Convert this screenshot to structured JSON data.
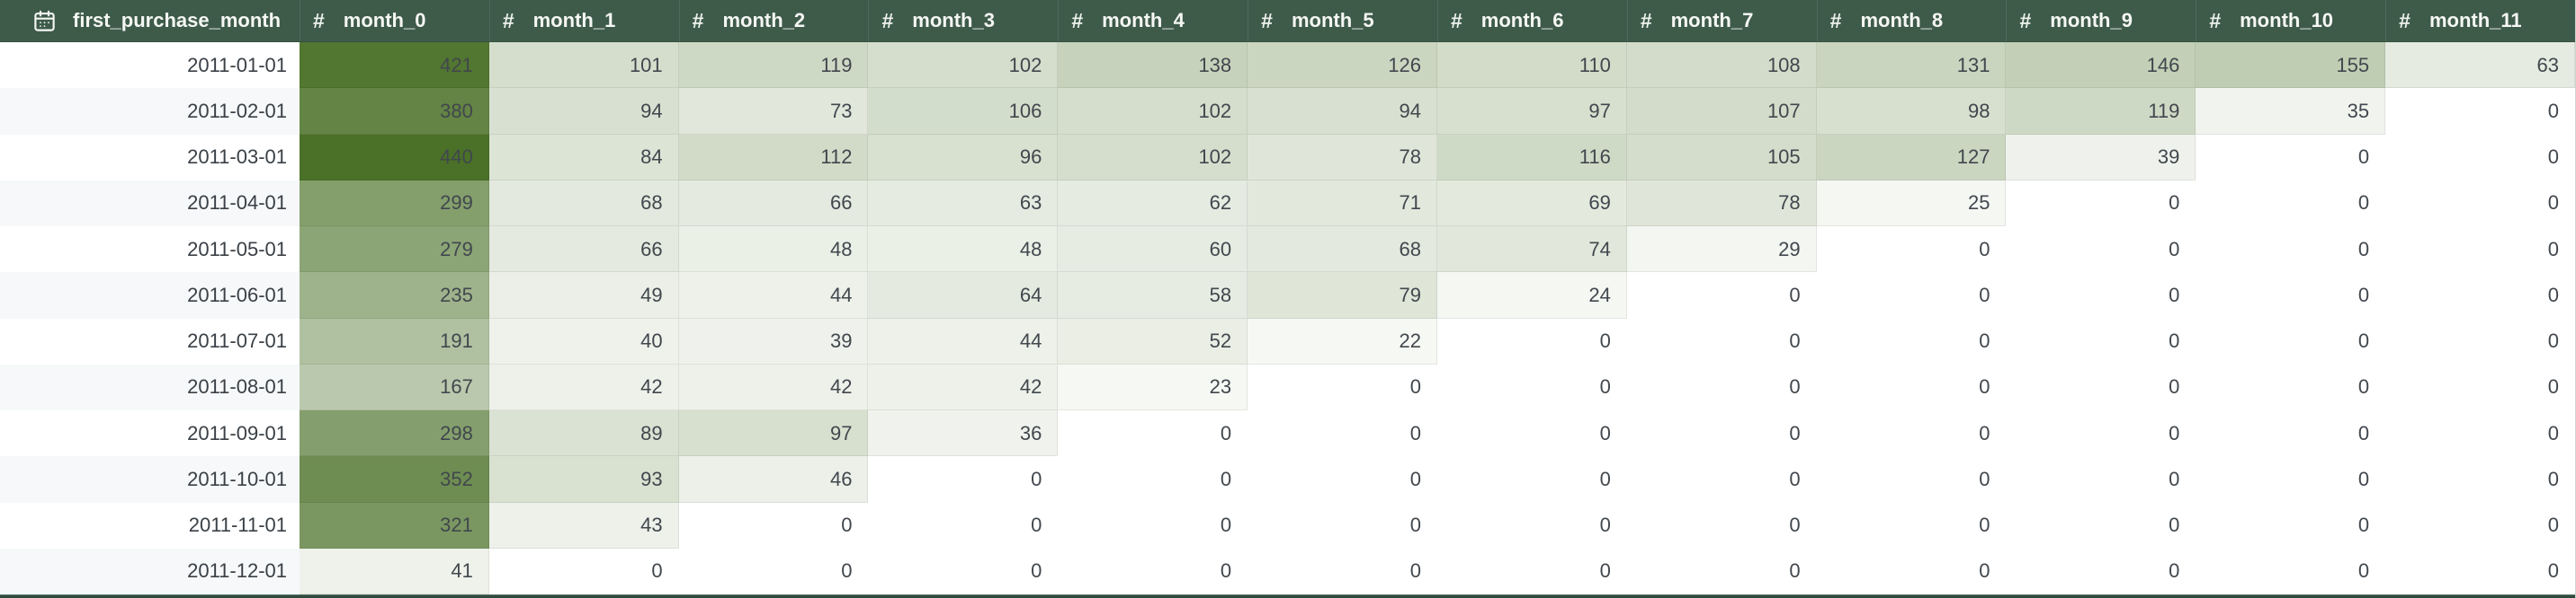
{
  "table": {
    "date_column": {
      "label": "first_purchase_month",
      "icon": "calendar-icon"
    },
    "number_icon_glyph": "#",
    "month_columns": [
      {
        "label": "month_0"
      },
      {
        "label": "month_1"
      },
      {
        "label": "month_2"
      },
      {
        "label": "month_3"
      },
      {
        "label": "month_4"
      },
      {
        "label": "month_5"
      },
      {
        "label": "month_6"
      },
      {
        "label": "month_7"
      },
      {
        "label": "month_8"
      },
      {
        "label": "month_9"
      },
      {
        "label": "month_10"
      },
      {
        "label": "month_11"
      }
    ],
    "rows": [
      {
        "date": "2011-01-01",
        "values": [
          421,
          101,
          119,
          102,
          138,
          126,
          110,
          108,
          131,
          146,
          155,
          63
        ]
      },
      {
        "date": "2011-02-01",
        "values": [
          380,
          94,
          73,
          106,
          102,
          94,
          97,
          107,
          98,
          119,
          35,
          0
        ]
      },
      {
        "date": "2011-03-01",
        "values": [
          440,
          84,
          112,
          96,
          102,
          78,
          116,
          105,
          127,
          39,
          0,
          0
        ]
      },
      {
        "date": "2011-04-01",
        "values": [
          299,
          68,
          66,
          63,
          62,
          71,
          69,
          78,
          25,
          0,
          0,
          0
        ]
      },
      {
        "date": "2011-05-01",
        "values": [
          279,
          66,
          48,
          48,
          60,
          68,
          74,
          29,
          0,
          0,
          0,
          0
        ]
      },
      {
        "date": "2011-06-01",
        "values": [
          235,
          49,
          44,
          64,
          58,
          79,
          24,
          0,
          0,
          0,
          0,
          0
        ]
      },
      {
        "date": "2011-07-01",
        "values": [
          191,
          40,
          39,
          44,
          52,
          22,
          0,
          0,
          0,
          0,
          0,
          0
        ]
      },
      {
        "date": "2011-08-01",
        "values": [
          167,
          42,
          42,
          42,
          23,
          0,
          0,
          0,
          0,
          0,
          0,
          0
        ]
      },
      {
        "date": "2011-09-01",
        "values": [
          298,
          89,
          97,
          36,
          0,
          0,
          0,
          0,
          0,
          0,
          0,
          0
        ]
      },
      {
        "date": "2011-10-01",
        "values": [
          352,
          93,
          46,
          0,
          0,
          0,
          0,
          0,
          0,
          0,
          0,
          0
        ]
      },
      {
        "date": "2011-11-01",
        "values": [
          321,
          43,
          0,
          0,
          0,
          0,
          0,
          0,
          0,
          0,
          0,
          0
        ]
      },
      {
        "date": "2011-12-01",
        "values": [
          41,
          0,
          0,
          0,
          0,
          0,
          0,
          0,
          0,
          0,
          0,
          0
        ]
      }
    ]
  },
  "heatmap": {
    "domain": [
      0,
      440
    ],
    "min_color": "#FFFFFF",
    "max_color": "#4A7127"
  },
  "colors": {
    "header_bg": "#3E5B4A",
    "header_text": "#F5F7F4",
    "row_stripe": "#F6F8F9",
    "cell_text": "#41474D",
    "bottom_bar": "#2F4A3E"
  },
  "chart_data": {
    "type": "heatmap",
    "title": "",
    "x_labels": [
      "month_0",
      "month_1",
      "month_2",
      "month_3",
      "month_4",
      "month_5",
      "month_6",
      "month_7",
      "month_8",
      "month_9",
      "month_10",
      "month_11"
    ],
    "y_labels": [
      "2011-01-01",
      "2011-02-01",
      "2011-03-01",
      "2011-04-01",
      "2011-05-01",
      "2011-06-01",
      "2011-07-01",
      "2011-08-01",
      "2011-09-01",
      "2011-10-01",
      "2011-11-01",
      "2011-12-01"
    ],
    "values": [
      [
        421,
        101,
        119,
        102,
        138,
        126,
        110,
        108,
        131,
        146,
        155,
        63
      ],
      [
        380,
        94,
        73,
        106,
        102,
        94,
        97,
        107,
        98,
        119,
        35,
        0
      ],
      [
        440,
        84,
        112,
        96,
        102,
        78,
        116,
        105,
        127,
        39,
        0,
        0
      ],
      [
        299,
        68,
        66,
        63,
        62,
        71,
        69,
        78,
        25,
        0,
        0,
        0
      ],
      [
        279,
        66,
        48,
        48,
        60,
        68,
        74,
        29,
        0,
        0,
        0,
        0
      ],
      [
        235,
        49,
        44,
        64,
        58,
        79,
        24,
        0,
        0,
        0,
        0,
        0
      ],
      [
        191,
        40,
        39,
        44,
        52,
        22,
        0,
        0,
        0,
        0,
        0,
        0
      ],
      [
        167,
        42,
        42,
        42,
        23,
        0,
        0,
        0,
        0,
        0,
        0,
        0
      ],
      [
        298,
        89,
        97,
        36,
        0,
        0,
        0,
        0,
        0,
        0,
        0,
        0
      ],
      [
        352,
        93,
        46,
        0,
        0,
        0,
        0,
        0,
        0,
        0,
        0,
        0
      ],
      [
        321,
        43,
        0,
        0,
        0,
        0,
        0,
        0,
        0,
        0,
        0,
        0
      ],
      [
        41,
        0,
        0,
        0,
        0,
        0,
        0,
        0,
        0,
        0,
        0,
        0
      ]
    ],
    "color_scale": {
      "min": 0,
      "max": 440,
      "min_color": "#FFFFFF",
      "max_color": "#4A7127"
    },
    "legend_position": "none",
    "grid": false
  }
}
